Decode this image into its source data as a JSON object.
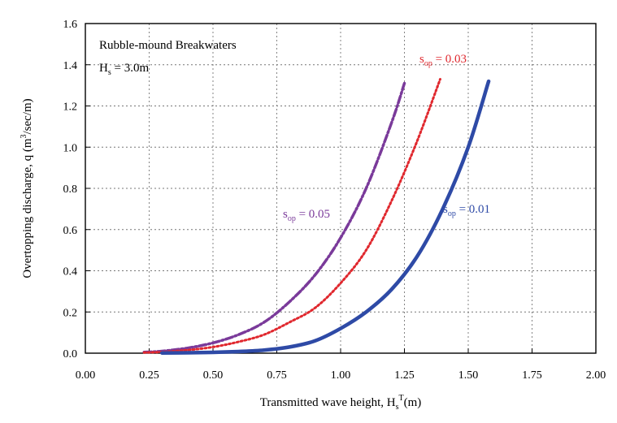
{
  "chart_data": {
    "type": "line",
    "title": "",
    "annotations": {
      "panel_title": "Rubble-mound Breakwaters",
      "hs_label": {
        "main": "H",
        "sub": "s",
        "rest": " = 3.0m"
      }
    },
    "xlabel": {
      "main": "Transmitted wave height, H",
      "sub": "s",
      "sup": "T",
      "rest": "(m)"
    },
    "ylabel": {
      "main": "Overtopping discharge, q (m",
      "sup": "3",
      "rest": "/sec/m)"
    },
    "xlim": [
      0.0,
      2.0
    ],
    "ylim": [
      0.0,
      1.6
    ],
    "x_ticks": [
      "0.00",
      "0.25",
      "0.50",
      "0.75",
      "1.00",
      "1.25",
      "1.50",
      "1.75",
      "2.00"
    ],
    "y_ticks": [
      "0.0",
      "0.2",
      "0.4",
      "0.6",
      "0.8",
      "1.0",
      "1.2",
      "1.4",
      "1.6"
    ],
    "grid": true,
    "series": [
      {
        "label": {
          "main": "s",
          "sub": "op",
          "rest": " = 0.05"
        },
        "color": "#7a3a9a",
        "style": "dashdot",
        "x": [
          0.23,
          0.3,
          0.4,
          0.5,
          0.6,
          0.7,
          0.8,
          0.9,
          1.0,
          1.1,
          1.2,
          1.25
        ],
        "y": [
          0.005,
          0.01,
          0.025,
          0.05,
          0.09,
          0.15,
          0.25,
          0.38,
          0.56,
          0.8,
          1.12,
          1.31
        ]
      },
      {
        "label": {
          "main": "s",
          "sub": "op",
          "rest": " = 0.03"
        },
        "color": "#e0282e",
        "style": "dotted",
        "x": [
          0.23,
          0.3,
          0.4,
          0.5,
          0.6,
          0.7,
          0.8,
          0.9,
          1.0,
          1.1,
          1.2,
          1.3,
          1.39
        ],
        "y": [
          0.003,
          0.006,
          0.015,
          0.03,
          0.055,
          0.09,
          0.15,
          0.22,
          0.34,
          0.5,
          0.74,
          1.03,
          1.33
        ]
      },
      {
        "label": {
          "main": "s",
          "sub": "op",
          "rest": " = 0.01"
        },
        "color": "#2e4aa6",
        "style": "solid",
        "x": [
          0.3,
          0.4,
          0.5,
          0.6,
          0.7,
          0.8,
          0.9,
          1.0,
          1.1,
          1.2,
          1.3,
          1.4,
          1.5,
          1.58
        ],
        "y": [
          0.001,
          0.002,
          0.004,
          0.008,
          0.015,
          0.03,
          0.06,
          0.12,
          0.2,
          0.31,
          0.47,
          0.7,
          1.0,
          1.32
        ]
      }
    ]
  }
}
